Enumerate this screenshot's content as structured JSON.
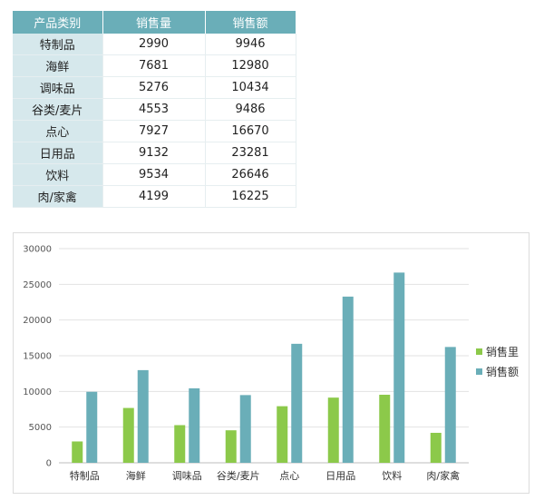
{
  "table": {
    "headers": [
      "产品类别",
      "销售量",
      "销售额"
    ],
    "rows": [
      [
        "特制品",
        "2990",
        "9946"
      ],
      [
        "海鲜",
        "7681",
        "12980"
      ],
      [
        "调味品",
        "5276",
        "10434"
      ],
      [
        "谷类/麦片",
        "4553",
        "9486"
      ],
      [
        "点心",
        "7927",
        "16670"
      ],
      [
        "日用品",
        "9132",
        "23281"
      ],
      [
        "饮料",
        "9534",
        "26646"
      ],
      [
        "肉/家禽",
        "4199",
        "16225"
      ]
    ]
  },
  "colors": {
    "header_bg": "#6aaeb8",
    "category_bg": "#d6e8ec",
    "series_volume": "#8cc94a",
    "series_amount": "#6aaeb8"
  },
  "chart_data": {
    "type": "bar",
    "categories": [
      "特制品",
      "海鲜",
      "调味品",
      "谷类/麦片",
      "点心",
      "日用品",
      "饮料",
      "肉/家禽"
    ],
    "series": [
      {
        "name": "销售里",
        "values": [
          2990,
          7681,
          5276,
          4553,
          7927,
          9132,
          9534,
          4199
        ]
      },
      {
        "name": "销售额",
        "values": [
          9946,
          12980,
          10434,
          9486,
          16670,
          23281,
          26646,
          16225
        ]
      }
    ],
    "ylim": [
      0,
      30000
    ],
    "yticks": [
      "0",
      "5000",
      "10000",
      "15000",
      "20000",
      "25000",
      "30000"
    ],
    "grid": true,
    "legend_position": "right"
  }
}
